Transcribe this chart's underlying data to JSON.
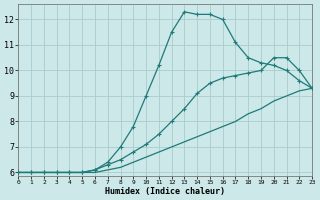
{
  "xlabel": "Humidex (Indice chaleur)",
  "background_color": "#cce8e8",
  "grid_color": "#aacccc",
  "line_color": "#1f7a7a",
  "xlim": [
    0,
    23
  ],
  "ylim": [
    5.85,
    12.6
  ],
  "yticks": [
    6,
    7,
    8,
    9,
    10,
    11,
    12
  ],
  "xticks": [
    0,
    1,
    2,
    3,
    4,
    5,
    6,
    7,
    8,
    9,
    10,
    11,
    12,
    13,
    14,
    15,
    16,
    17,
    18,
    19,
    20,
    21,
    22,
    23
  ],
  "line_bottom_x": [
    0,
    1,
    2,
    3,
    4,
    5,
    6,
    7,
    8,
    9,
    10,
    11,
    12,
    13,
    14,
    15,
    16,
    17,
    18,
    19,
    20,
    21,
    22,
    23
  ],
  "line_bottom_y": [
    6.0,
    6.0,
    6.0,
    6.0,
    6.0,
    6.0,
    6.0,
    6.1,
    6.2,
    6.4,
    6.6,
    6.8,
    7.0,
    7.2,
    7.4,
    7.6,
    7.8,
    8.0,
    8.3,
    8.5,
    8.8,
    9.0,
    9.2,
    9.3
  ],
  "line_mid_x": [
    0,
    1,
    2,
    3,
    4,
    5,
    6,
    7,
    8,
    9,
    10,
    11,
    12,
    13,
    14,
    15,
    16,
    17,
    18,
    19,
    20,
    21,
    22,
    23
  ],
  "line_mid_y": [
    6.0,
    6.0,
    6.0,
    6.0,
    6.0,
    6.0,
    6.1,
    6.3,
    6.5,
    6.8,
    7.1,
    7.5,
    8.0,
    8.5,
    9.1,
    9.5,
    9.7,
    9.8,
    9.9,
    10.0,
    10.5,
    10.5,
    10.0,
    9.3
  ],
  "line_top_x": [
    0,
    1,
    2,
    3,
    4,
    5,
    6,
    7,
    8,
    9,
    10,
    11,
    12,
    13,
    14,
    15,
    16,
    17,
    18,
    19,
    20,
    21,
    22,
    23
  ],
  "line_top_y": [
    6.0,
    6.0,
    6.0,
    6.0,
    6.0,
    6.0,
    6.1,
    6.4,
    7.0,
    7.8,
    9.0,
    10.2,
    11.5,
    12.3,
    12.2,
    12.2,
    12.0,
    11.1,
    10.5,
    10.3,
    10.2,
    10.0,
    9.6,
    9.3
  ]
}
